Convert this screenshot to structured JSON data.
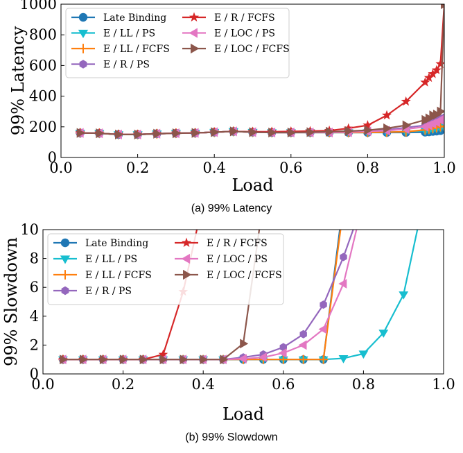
{
  "chart_data": [
    {
      "type": "line",
      "caption": "(a) 99% Latency",
      "xlabel": "Load",
      "ylabel": "99% Latency",
      "xlim": [
        0.0,
        1.0
      ],
      "ylim": [
        0,
        1000
      ],
      "xticks": [
        "0.0",
        "0.2",
        "0.4",
        "0.6",
        "0.8",
        "1.0"
      ],
      "yticks": [
        "0",
        "200",
        "400",
        "600",
        "800",
        "1000"
      ],
      "legend": "top-left",
      "grid": false,
      "x": [
        0.05,
        0.1,
        0.15,
        0.2,
        0.25,
        0.3,
        0.35,
        0.4,
        0.45,
        0.5,
        0.55,
        0.6,
        0.65,
        0.7,
        0.75,
        0.8,
        0.85,
        0.9,
        0.95,
        0.96,
        0.97,
        0.98,
        0.99,
        1.0
      ],
      "series": [
        {
          "name": "Late Binding",
          "color": "#1f77b4",
          "marker": "circle",
          "values": [
            160,
            158,
            150,
            150,
            155,
            158,
            160,
            165,
            170,
            165,
            163,
            163,
            163,
            163,
            163,
            163,
            163,
            163,
            165,
            167,
            170,
            172,
            175,
            195
          ]
        },
        {
          "name": "E / LL / PS",
          "color": "#17becf",
          "marker": "triangle-down",
          "values": [
            160,
            158,
            150,
            150,
            155,
            158,
            160,
            165,
            170,
            165,
            163,
            163,
            163,
            163,
            163,
            163,
            165,
            168,
            175,
            180,
            185,
            190,
            195,
            200
          ]
        },
        {
          "name": "E / LL / FCFS",
          "color": "#ff7f0e",
          "marker": "plus",
          "values": [
            160,
            158,
            150,
            150,
            155,
            158,
            160,
            165,
            170,
            165,
            163,
            163,
            163,
            163,
            163,
            163,
            165,
            168,
            180,
            185,
            190,
            195,
            200,
            205
          ]
        },
        {
          "name": "E / R / PS",
          "color": "#9467bd",
          "marker": "hexagon",
          "values": [
            160,
            158,
            150,
            150,
            155,
            158,
            160,
            165,
            170,
            165,
            163,
            163,
            165,
            167,
            170,
            175,
            180,
            195,
            210,
            220,
            230,
            240,
            250,
            260
          ]
        },
        {
          "name": "E / R / FCFS",
          "color": "#d62728",
          "marker": "star",
          "values": [
            160,
            158,
            150,
            150,
            155,
            158,
            160,
            165,
            170,
            168,
            168,
            170,
            172,
            175,
            190,
            210,
            275,
            365,
            490,
            520,
            545,
            570,
            610,
            1000
          ]
        },
        {
          "name": "E / LOC / PS",
          "color": "#e377c2",
          "marker": "triangle-left",
          "values": [
            160,
            158,
            150,
            150,
            155,
            158,
            160,
            165,
            170,
            165,
            163,
            163,
            163,
            163,
            165,
            170,
            175,
            185,
            200,
            210,
            220,
            230,
            245,
            255
          ]
        },
        {
          "name": "E / LOC / FCFS",
          "color": "#8c564b",
          "marker": "triangle-right",
          "values": [
            160,
            158,
            150,
            150,
            155,
            158,
            160,
            165,
            170,
            165,
            163,
            163,
            165,
            168,
            172,
            178,
            190,
            210,
            245,
            255,
            275,
            280,
            300,
            1000
          ]
        }
      ]
    },
    {
      "type": "line",
      "caption": "(b) 99% Slowdown",
      "xlabel": "Load",
      "ylabel": "99% Slowdown",
      "xlim": [
        0.0,
        1.0
      ],
      "ylim": [
        0,
        10
      ],
      "xticks": [
        "0.0",
        "0.2",
        "0.4",
        "0.6",
        "0.8",
        "1.0"
      ],
      "yticks": [
        "0",
        "2",
        "4",
        "6",
        "8",
        "10"
      ],
      "legend": "top-left",
      "grid": false,
      "x": [
        0.05,
        0.1,
        0.15,
        0.2,
        0.25,
        0.3,
        0.35,
        0.4,
        0.45,
        0.5,
        0.55,
        0.6,
        0.65,
        0.7,
        0.75,
        0.8,
        0.85,
        0.9,
        0.95
      ],
      "series": [
        {
          "name": "Late Binding",
          "color": "#1f77b4",
          "marker": "circle",
          "values": [
            1.0,
            1.0,
            1.0,
            1.0,
            1.0,
            1.0,
            1.0,
            1.0,
            1.0,
            1.0,
            1.0,
            1.0,
            1.0,
            1.0,
            12.0,
            null,
            null,
            null,
            null
          ]
        },
        {
          "name": "E / LL / PS",
          "color": "#17becf",
          "marker": "triangle-down",
          "values": [
            1.0,
            1.0,
            1.0,
            1.0,
            1.0,
            1.0,
            1.0,
            1.0,
            1.0,
            1.0,
            1.0,
            1.0,
            1.0,
            1.0,
            1.08,
            1.4,
            2.85,
            5.5,
            12.0
          ]
        },
        {
          "name": "E / LL / FCFS",
          "color": "#ff7f0e",
          "marker": "plus",
          "values": [
            1.0,
            1.0,
            1.0,
            1.0,
            1.0,
            1.0,
            1.0,
            1.0,
            1.0,
            1.0,
            1.0,
            1.0,
            1.0,
            1.0,
            11.5,
            null,
            null,
            null,
            null
          ]
        },
        {
          "name": "E / R / PS",
          "color": "#9467bd",
          "marker": "hexagon",
          "values": [
            1.0,
            1.0,
            1.0,
            1.0,
            1.0,
            1.0,
            1.0,
            1.0,
            1.0,
            1.15,
            1.35,
            1.85,
            2.75,
            4.8,
            8.1,
            12.0,
            null,
            null,
            null
          ]
        },
        {
          "name": "E / R / FCFS",
          "color": "#d62728",
          "marker": "star",
          "values": [
            1.0,
            1.0,
            1.0,
            1.0,
            1.0,
            1.35,
            5.7,
            12.0,
            null,
            null,
            null,
            null,
            null,
            null,
            null,
            null,
            null,
            null,
            null
          ]
        },
        {
          "name": "E / LOC / PS",
          "color": "#e377c2",
          "marker": "triangle-left",
          "values": [
            1.0,
            1.0,
            1.0,
            1.0,
            1.0,
            1.0,
            1.0,
            1.0,
            1.0,
            1.05,
            1.15,
            1.45,
            2.0,
            3.1,
            6.25,
            12.0,
            null,
            null,
            null
          ]
        },
        {
          "name": "E / LOC / FCFS",
          "color": "#8c564b",
          "marker": "triangle-right",
          "values": [
            1.0,
            1.0,
            1.0,
            1.0,
            1.0,
            1.0,
            1.0,
            1.0,
            1.0,
            2.1,
            12.0,
            null,
            null,
            null,
            null,
            null,
            null,
            null,
            null
          ]
        }
      ]
    }
  ]
}
